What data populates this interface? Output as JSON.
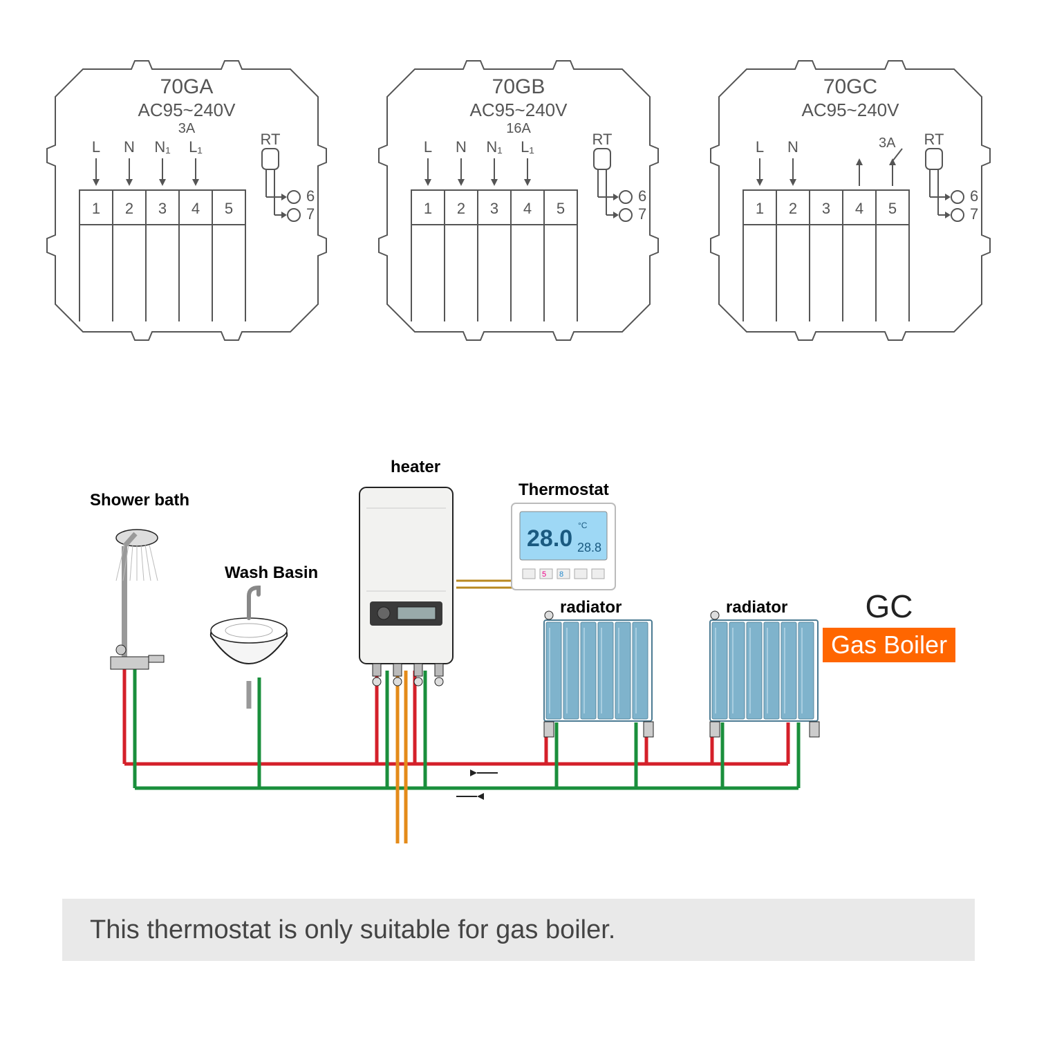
{
  "wiring_modules": [
    {
      "model": "70GA",
      "voltage": "AC95~240V",
      "amp": "3A",
      "show_amp_center": true,
      "terminals": [
        "L",
        "N",
        "N₁",
        "L₁",
        ""
      ],
      "numbers": [
        "1",
        "2",
        "3",
        "4",
        "5"
      ],
      "rt_label": "RT",
      "rt_out": [
        "6",
        "7"
      ],
      "arrow_up_4_5": false
    },
    {
      "model": "70GB",
      "voltage": "AC95~240V",
      "amp": "16A",
      "show_amp_center": true,
      "terminals": [
        "L",
        "N",
        "N₁",
        "L₁",
        ""
      ],
      "numbers": [
        "1",
        "2",
        "3",
        "4",
        "5"
      ],
      "rt_label": "RT",
      "rt_out": [
        "6",
        "7"
      ],
      "arrow_up_4_5": false
    },
    {
      "model": "70GC",
      "voltage": "AC95~240V",
      "amp": "3A",
      "show_amp_center": false,
      "terminals": [
        "L",
        "N",
        "",
        "",
        ""
      ],
      "numbers": [
        "1",
        "2",
        "3",
        "4",
        "5"
      ],
      "rt_label": "RT",
      "amp_right": "3A",
      "rt_out": [
        "6",
        "7"
      ],
      "arrow_up_4_5": true
    }
  ],
  "system": {
    "labels": {
      "shower": "Shower bath",
      "basin": "Wash Basin",
      "heater": "heater",
      "thermostat": "Thermostat",
      "radiator": "radiator"
    },
    "thermostat_display": {
      "big": "28.0",
      "small": "28.8",
      "unit": "°C"
    },
    "pipe_colors": {
      "hot": "#d4202a",
      "cold": "#1a8f3c",
      "supply": "#e48b1a",
      "ctrl": "#b8881f"
    },
    "stroke": "#222222",
    "radiator_fill": "#7fb3cc",
    "basin_fill": "#f5f5f5",
    "heater_fill": "#f2f2f0",
    "thermostat_screen": "#9ed8f5"
  },
  "gc_badge": {
    "title": "GC",
    "label": "Gas Boiler",
    "bg": "#ff6600",
    "fg": "#ffffff"
  },
  "footer": "This thermostat is only suitable for gas boiler.",
  "style": {
    "module_stroke": "#555555",
    "module_stroke_w": 2,
    "module_font": 26,
    "module_font_small": 20,
    "terminal_font": 22,
    "system_label_font": 24,
    "system_label_weight": "bold"
  }
}
